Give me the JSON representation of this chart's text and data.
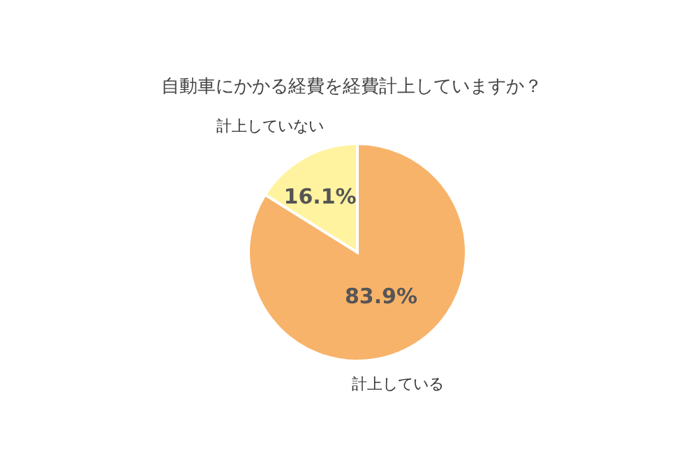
{
  "chart_data": {
    "type": "pie",
    "title": "自動車にかかる経費を経費計上していますか？",
    "categories": [
      "計上している",
      "計上していない"
    ],
    "values": [
      83.9,
      16.1
    ],
    "colors": [
      "#f8b36a",
      "#fff3a0"
    ],
    "value_labels": [
      "83.9%",
      "16.1%"
    ]
  }
}
